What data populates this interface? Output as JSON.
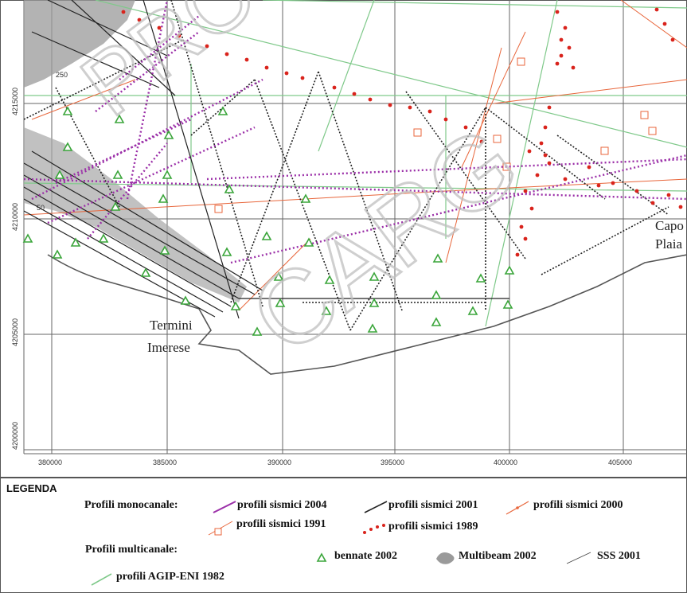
{
  "map": {
    "x_ticks": [
      "380000",
      "385000",
      "390000",
      "395000",
      "400000",
      "405000"
    ],
    "y_ticks": [
      "4215000",
      "4210000",
      "4205000",
      "4200000"
    ],
    "places": [
      {
        "id": "termini",
        "lines": [
          "Termini",
          "Imerese"
        ]
      },
      {
        "id": "capo",
        "lines": [
          "Capo",
          "Plaia"
        ]
      }
    ],
    "contours": [
      "250",
      "50"
    ],
    "watermark": [
      "PROGETTO",
      "CARG"
    ],
    "colors": {
      "sismici_2004": "#9b2fa8",
      "sismici_2001": "#222222",
      "sismici_2000": "#e8663b",
      "sismici_1991": "#e8663b",
      "sismici_1989": "#d9231c",
      "bennate_2002": "#3aa53a",
      "agip_eni_1982": "#7fc98a",
      "multibeam": "#8a8a8a"
    }
  },
  "legend": {
    "title": "LEGENDA",
    "monocanale_label": "Profili monocanale:",
    "multicanale_label": "Profili multicanale:",
    "items": {
      "sismici_2004": "profili sismici 2004",
      "sismici_2001": "profili sismici 2001",
      "sismici_2000": "profili sismici 2000",
      "sismici_1991": "profili sismici 1991",
      "sismici_1989": "profili sismici 1989",
      "bennate_2002": "bennate 2002",
      "multibeam_2002": "Multibeam 2002",
      "sss_2001": "SSS 2001",
      "agip_eni_1982": "profili AGIP-ENI 1982"
    }
  }
}
